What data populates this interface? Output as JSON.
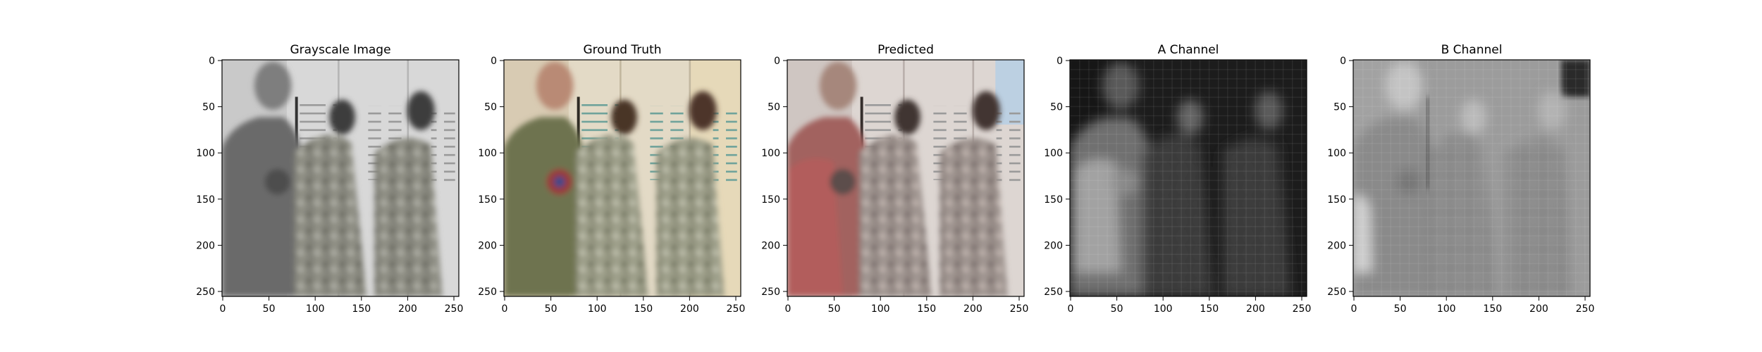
{
  "figure": {
    "panels": [
      {
        "title": "Grayscale Image",
        "tone": "gray",
        "x_ticks": [
          "0",
          "50",
          "100",
          "150",
          "200",
          "250"
        ],
        "y_ticks": [
          "0",
          "50",
          "100",
          "150",
          "200",
          "250"
        ]
      },
      {
        "title": "Ground Truth",
        "tone": "color",
        "x_ticks": [
          "0",
          "50",
          "100",
          "150",
          "200",
          "250"
        ],
        "y_ticks": [
          "0",
          "50",
          "100",
          "150",
          "200",
          "250"
        ]
      },
      {
        "title": "Predicted",
        "tone": "predicted",
        "x_ticks": [
          "0",
          "50",
          "100",
          "150",
          "200",
          "250"
        ],
        "y_ticks": [
          "0",
          "50",
          "100",
          "150",
          "200",
          "250"
        ]
      },
      {
        "title": "A Channel",
        "tone": "a-channel",
        "x_ticks": [
          "0",
          "50",
          "100",
          "150",
          "200",
          "250"
        ],
        "y_ticks": [
          "0",
          "50",
          "100",
          "150",
          "200",
          "250"
        ]
      },
      {
        "title": "B Channel",
        "tone": "b-channel",
        "x_ticks": [
          "0",
          "50",
          "100",
          "150",
          "200",
          "250"
        ],
        "y_ticks": [
          "0",
          "50",
          "100",
          "150",
          "200",
          "250"
        ]
      }
    ]
  }
}
